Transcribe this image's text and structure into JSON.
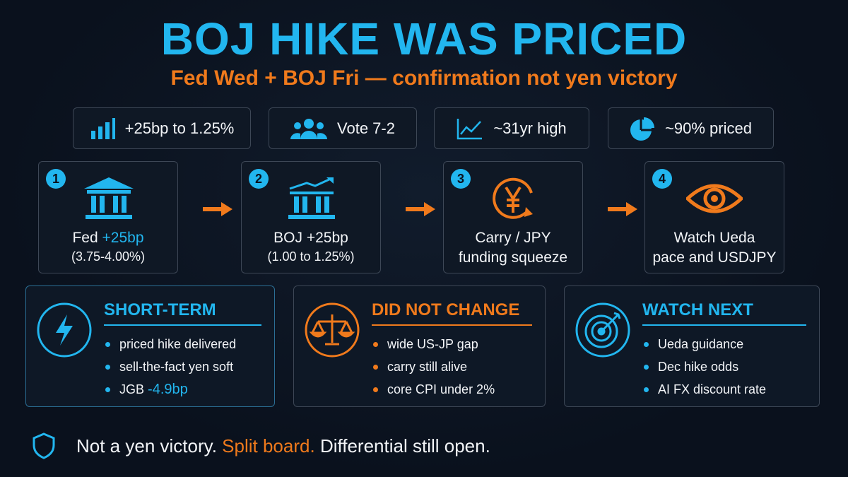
{
  "header": {
    "title": "BOJ HIKE WAS PRICED",
    "subtitle": "Fed Wed + BOJ Fri — confirmation not yen victory"
  },
  "stats": [
    "+25bp to 1.25%",
    "Vote 7-2",
    "~31yr high",
    "~90% priced"
  ],
  "steps": [
    {
      "number": "1",
      "title": "Fed",
      "highlight": "+25bp",
      "detail": "(3.75-4.00%)"
    },
    {
      "number": "2",
      "title": "BOJ +25bp",
      "detail": "(1.00 to 1.25%)"
    },
    {
      "number": "3",
      "title": "Carry / JPY",
      "detail": "funding squeeze"
    },
    {
      "number": "4",
      "title": "Watch Ueda",
      "detail": "pace and USDJPY"
    }
  ],
  "panels": [
    {
      "title": "SHORT-TERM",
      "items": [
        "priced hike delivered",
        "sell-the-fact yen soft",
        "JGB"
      ],
      "highlight": "-4.9bp"
    },
    {
      "title": "DID NOT CHANGE",
      "items": [
        "wide US-JP gap",
        "carry still alive",
        "core CPI under 2%"
      ]
    },
    {
      "title": "WATCH NEXT",
      "items": [
        "Ueda guidance",
        "Dec hike odds",
        "AI FX discount rate"
      ]
    }
  ],
  "footer": [
    "Not a yen victory.",
    "Split board.",
    "Differential still open."
  ]
}
